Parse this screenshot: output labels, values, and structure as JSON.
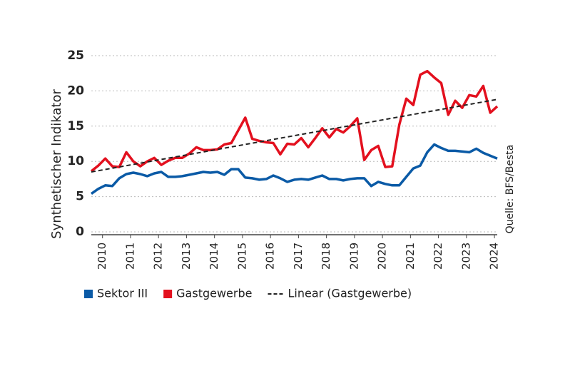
{
  "chart_data": {
    "type": "line",
    "y_label": "Synthetischer Indikator",
    "source": "Quelle: BFS/Besta",
    "x": [
      2010,
      2010.25,
      2010.5,
      2010.75,
      2011,
      2011.25,
      2011.5,
      2011.75,
      2012,
      2012.25,
      2012.5,
      2012.75,
      2013,
      2013.25,
      2013.5,
      2013.75,
      2014,
      2014.25,
      2014.5,
      2014.75,
      2015,
      2015.25,
      2015.5,
      2015.75,
      2016,
      2016.25,
      2016.5,
      2016.75,
      2017,
      2017.25,
      2017.5,
      2017.75,
      2018,
      2018.25,
      2018.5,
      2018.75,
      2019,
      2019.25,
      2019.5,
      2019.75,
      2020,
      2020.25,
      2020.5,
      2020.75,
      2021,
      2021.25,
      2021.5,
      2021.75,
      2022,
      2022.25,
      2022.5,
      2022.75,
      2023,
      2023.25,
      2023.5,
      2023.75,
      2024,
      2024.25,
      2024.5
    ],
    "series": [
      {
        "name": "Sektor III",
        "color": "#0a5aa6",
        "values": [
          5.4,
          6.1,
          6.6,
          6.5,
          7.6,
          8.2,
          8.4,
          8.2,
          7.9,
          8.3,
          8.5,
          7.8,
          7.8,
          7.9,
          8.1,
          8.3,
          8.5,
          8.4,
          8.5,
          8.1,
          8.9,
          8.9,
          7.7,
          7.6,
          7.4,
          7.5,
          8.0,
          7.6,
          7.1,
          7.4,
          7.5,
          7.4,
          7.7,
          8.0,
          7.5,
          7.5,
          7.3,
          7.5,
          7.6,
          7.6,
          6.5,
          7.1,
          6.8,
          6.6,
          6.6,
          7.8,
          9.0,
          9.4,
          11.3,
          12.4,
          11.9,
          11.5,
          11.5,
          11.4,
          11.3,
          11.8,
          11.2,
          10.8,
          10.4
        ]
      },
      {
        "name": "Gastgewerbe",
        "color": "#e3101e",
        "values": [
          8.6,
          9.4,
          10.4,
          9.3,
          9.2,
          11.3,
          10.0,
          9.3,
          10.0,
          10.5,
          9.5,
          10.1,
          10.5,
          10.5,
          11.1,
          12.0,
          11.6,
          11.6,
          11.7,
          12.4,
          12.6,
          14.4,
          16.2,
          13.2,
          12.9,
          12.7,
          12.6,
          11.0,
          12.5,
          12.4,
          13.3,
          12.0,
          13.3,
          14.7,
          13.4,
          14.6,
          14.1,
          15.0,
          16.1,
          10.2,
          11.6,
          12.2,
          9.2,
          9.3,
          15.2,
          18.9,
          18.0,
          22.3,
          22.8,
          21.9,
          21.1,
          16.6,
          18.6,
          17.6,
          19.4,
          19.2,
          20.7,
          16.9,
          17.8
        ]
      },
      {
        "name": "Linear (Gastgewerbe)",
        "color": "#222222",
        "dash": true,
        "x": [
          2010,
          2024.5
        ],
        "values": [
          8.5,
          18.8
        ]
      }
    ],
    "xlim": [
      2010,
      2024.5
    ],
    "xticks": [
      {
        "value": 2010.4,
        "label": "2010"
      },
      {
        "value": 2011.4,
        "label": "2011"
      },
      {
        "value": 2012.4,
        "label": "2012"
      },
      {
        "value": 2013.4,
        "label": "2013"
      },
      {
        "value": 2014.4,
        "label": "2014"
      },
      {
        "value": 2015.4,
        "label": "2015"
      },
      {
        "value": 2016.4,
        "label": "2016"
      },
      {
        "value": 2017.4,
        "label": "2017"
      },
      {
        "value": 2018.4,
        "label": "2018"
      },
      {
        "value": 2019.4,
        "label": "2019"
      },
      {
        "value": 2020.4,
        "label": "2020"
      },
      {
        "value": 2021.4,
        "label": "2021"
      },
      {
        "value": 2022.4,
        "label": "2022"
      },
      {
        "value": 2023.4,
        "label": "2023"
      },
      {
        "value": 2024.4,
        "label": "2024"
      }
    ],
    "ylim": [
      0,
      25
    ],
    "yticks": [
      0,
      5,
      10,
      15,
      20,
      25
    ],
    "grid": true,
    "legend": "bottom"
  }
}
